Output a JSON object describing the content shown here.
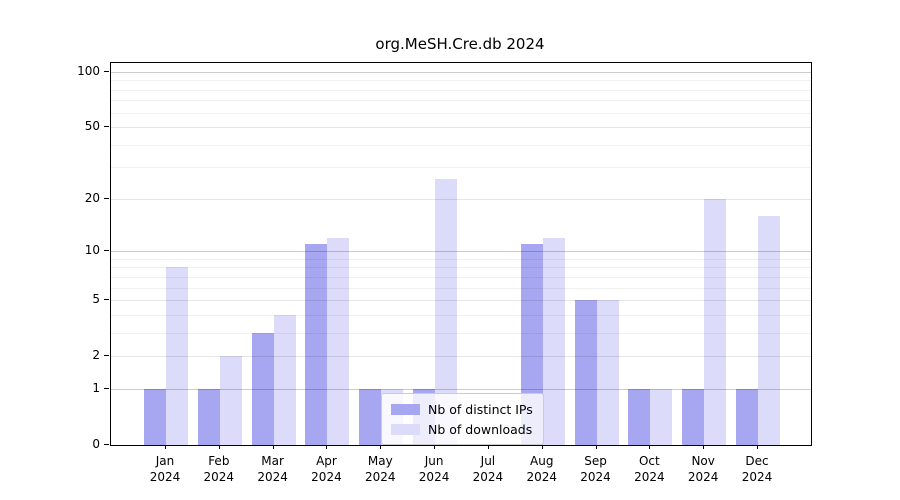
{
  "chart_data": {
    "type": "bar",
    "title": "org.MeSH.Cre.db 2024",
    "categories": [
      "Jan",
      "Feb",
      "Mar",
      "Apr",
      "May",
      "Jun",
      "Jul",
      "Aug",
      "Sep",
      "Oct",
      "Nov",
      "Dec"
    ],
    "x_tick_year": "2024",
    "series": [
      {
        "name": "Nb of distinct IPs",
        "color": "#a6a6f1",
        "values": [
          1,
          1,
          3,
          11,
          1,
          1,
          0,
          11,
          5,
          1,
          1,
          1
        ]
      },
      {
        "name": "Nb of downloads",
        "color": "#dcdcfa",
        "values": [
          8,
          2,
          4,
          12,
          1,
          26,
          0,
          12,
          5,
          1,
          20,
          16
        ]
      }
    ],
    "yaxis": {
      "scale": "log1p",
      "ticks": [
        0,
        1,
        2,
        5,
        10,
        20,
        50,
        100
      ],
      "decade_gridlines": [
        1,
        10,
        100
      ],
      "minor_gridlines": [
        3,
        4,
        6,
        7,
        8,
        9,
        30,
        40,
        60,
        70,
        80,
        90
      ],
      "top_value": 115
    },
    "xlabel": "",
    "ylabel": "",
    "grid": "both",
    "legend_position": "inside lower-center, overlapping May-Jun bars"
  }
}
